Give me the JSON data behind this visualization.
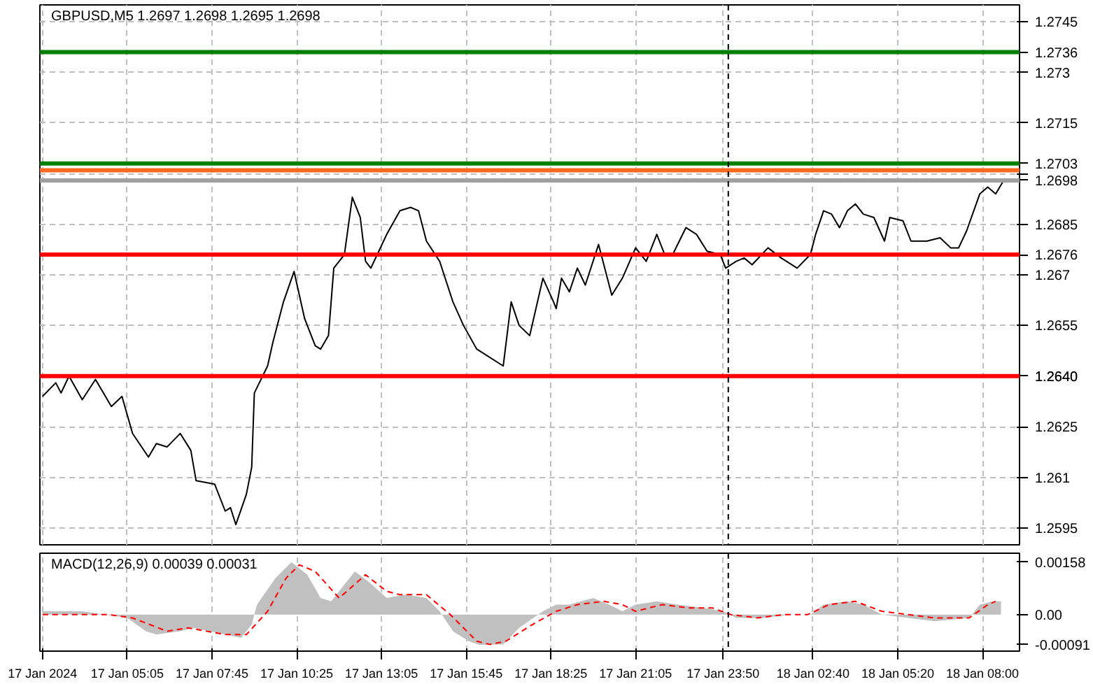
{
  "chart_data": [
    {
      "type": "line",
      "title": "GBPUSD,M5  1.2697 1.2698 1.2695 1.2698",
      "tick_labels": "y",
      "grid": true,
      "xlim": [
        "2024-01-17T02:20",
        "2024-01-18T09:10"
      ],
      "xticks": [
        {
          "value": "2024-01-17T02:25",
          "label": null
        },
        {
          "value": "2024-01-17T05:05",
          "label": null
        },
        {
          "value": "2024-01-17T07:45",
          "label": null
        },
        {
          "value": "2024-01-17T10:25",
          "label": null
        },
        {
          "value": "2024-01-17T13:05",
          "label": null
        },
        {
          "value": "2024-01-17T15:45",
          "label": null
        },
        {
          "value": "2024-01-17T18:25",
          "label": null
        },
        {
          "value": "2024-01-17T21:05",
          "label": null
        },
        {
          "value": "2024-01-17T23:50",
          "label": null
        },
        {
          "value": "2024-01-18T02:40",
          "label": null
        },
        {
          "value": "2024-01-18T05:20",
          "label": null
        },
        {
          "value": "2024-01-18T08:00",
          "label": null
        }
      ],
      "ylim": [
        1.259,
        1.275
      ],
      "yticks": [
        1.2595,
        1.261,
        1.2625,
        {
          "value": 1.264,
          "label": null
        },
        1.2655,
        1.267,
        1.2685,
        {
          "value": 1.27,
          "label": null
        },
        1.2715,
        1.273,
        1.2745
      ],
      "series": [
        {
          "color": "#000000",
          "x": [
            "2024-01-17T02:25",
            "2024-01-17T02:50",
            "2024-01-17T03:00",
            "2024-01-17T03:15",
            "2024-01-17T03:40",
            "2024-01-17T04:05",
            "2024-01-17T04:35",
            "2024-01-17T04:55",
            "2024-01-17T05:15",
            "2024-01-17T05:45",
            "2024-01-17T06:00",
            "2024-01-17T06:20",
            "2024-01-17T06:45",
            "2024-01-17T07:05",
            "2024-01-17T07:15",
            "2024-01-17T07:50",
            "2024-01-17T08:10",
            "2024-01-17T08:20",
            "2024-01-17T08:30",
            "2024-01-17T08:50",
            "2024-01-17T09:00",
            "2024-01-17T09:05",
            "2024-01-17T09:30",
            "2024-01-17T09:40",
            "2024-01-17T10:00",
            "2024-01-17T10:20",
            "2024-01-17T10:40",
            "2024-01-17T11:00",
            "2024-01-17T11:10",
            "2024-01-17T11:25",
            "2024-01-17T11:35",
            "2024-01-17T11:55",
            "2024-01-17T12:10",
            "2024-01-17T12:25",
            "2024-01-17T12:35",
            "2024-01-17T12:45",
            "2024-01-17T13:00",
            "2024-01-17T13:15",
            "2024-01-17T13:40",
            "2024-01-17T14:00",
            "2024-01-17T14:15",
            "2024-01-17T14:30",
            "2024-01-17T14:55",
            "2024-01-17T15:20",
            "2024-01-17T15:40",
            "2024-01-17T16:05",
            "2024-01-17T16:55",
            "2024-01-17T17:10",
            "2024-01-17T17:25",
            "2024-01-17T17:45",
            "2024-01-17T18:10",
            "2024-01-17T18:30",
            "2024-01-17T18:35",
            "2024-01-17T18:45",
            "2024-01-17T19:00",
            "2024-01-17T19:15",
            "2024-01-17T19:30",
            "2024-01-17T19:55",
            "2024-01-17T20:20",
            "2024-01-17T20:40",
            "2024-01-17T21:05",
            "2024-01-17T21:25",
            "2024-01-17T21:45",
            "2024-01-17T22:00",
            "2024-01-17T22:15",
            "2024-01-17T22:40",
            "2024-01-17T23:00",
            "2024-01-17T23:20",
            "2024-01-17T23:45",
            "2024-01-17T23:55",
            "2024-01-18T00:15",
            "2024-01-18T00:30",
            "2024-01-18T00:45",
            "2024-01-18T01:15",
            "2024-01-18T01:40",
            "2024-01-18T02:10",
            "2024-01-18T02:35",
            "2024-01-18T02:45",
            "2024-01-18T03:00",
            "2024-01-18T03:15",
            "2024-01-18T03:30",
            "2024-01-18T03:45",
            "2024-01-18T04:00",
            "2024-01-18T04:15",
            "2024-01-18T04:35",
            "2024-01-18T04:55",
            "2024-01-18T05:05",
            "2024-01-18T05:30",
            "2024-01-18T05:45",
            "2024-01-18T06:15",
            "2024-01-18T06:40",
            "2024-01-18T07:00",
            "2024-01-18T07:15",
            "2024-01-18T07:30",
            "2024-01-18T07:55",
            "2024-01-18T08:10",
            "2024-01-18T08:25",
            "2024-01-18T08:40"
          ],
          "values": [
            1.2634,
            1.2638,
            1.2635,
            1.264,
            1.2633,
            1.2639,
            1.2631,
            1.2634,
            1.2623,
            1.2616,
            1.262,
            1.2619,
            1.2623,
            1.2618,
            1.2609,
            1.2608,
            1.26,
            1.2601,
            1.2596,
            1.2605,
            1.2613,
            1.2635,
            1.2643,
            1.265,
            1.2662,
            1.2671,
            1.2657,
            1.2649,
            1.2648,
            1.2652,
            1.2672,
            1.2676,
            1.2693,
            1.2687,
            1.2674,
            1.2672,
            1.2677,
            1.2682,
            1.2689,
            1.269,
            1.2689,
            1.268,
            1.2674,
            1.2662,
            1.2655,
            1.2648,
            1.2643,
            1.2662,
            1.2655,
            1.2652,
            1.2669,
            1.2662,
            1.266,
            1.2669,
            1.2665,
            1.2672,
            1.2667,
            1.2679,
            1.2664,
            1.2669,
            1.2678,
            1.2674,
            1.2682,
            1.2676,
            1.2676,
            1.2684,
            1.2682,
            1.2677,
            1.2676,
            1.2672,
            1.2674,
            1.2675,
            1.2673,
            1.2678,
            1.2675,
            1.2672,
            1.2676,
            1.2682,
            1.2689,
            1.2688,
            1.2684,
            1.2689,
            1.2691,
            1.2688,
            1.2687,
            1.268,
            1.2687,
            1.2686,
            1.268,
            1.268,
            1.2681,
            1.2678,
            1.2678,
            1.2683,
            1.2694,
            1.2696,
            1.2694,
            1.2698
          ]
        }
      ],
      "ref_lines": [
        {
          "axis": "y",
          "value": 1.2736,
          "label": "1.2736",
          "color": "#008000"
        },
        {
          "axis": "y",
          "value": 1.2703,
          "label": "1.2703",
          "color": "#008000"
        },
        {
          "axis": "y",
          "value": 1.2701,
          "label": null,
          "color": "#ff6a20"
        },
        {
          "axis": "y",
          "value": 1.2698,
          "label": "1.2698",
          "color": "#a0a0a0"
        },
        {
          "axis": "y",
          "value": 1.2676,
          "label": "1.2676",
          "color": "#ff0000"
        },
        {
          "axis": "y",
          "value": 1.264,
          "label": "1.2640",
          "color": "#ff0000"
        },
        {
          "axis": "x",
          "value": "2024-01-18T00:00",
          "label": null,
          "color": "#000000",
          "line_style": "dashed"
        }
      ]
    },
    {
      "type": "line",
      "title": "MACD(12,26,9) 0.00039 0.00031",
      "grid": "x",
      "xlim": [
        "2024-01-17T02:20",
        "2024-01-18T09:10"
      ],
      "xticks": [
        {
          "value": "2024-01-17T02:25",
          "label": "17 Jan 2024"
        },
        {
          "value": "2024-01-17T05:05",
          "label": "17 Jan 05:05"
        },
        {
          "value": "2024-01-17T07:45",
          "label": "17 Jan 07:45"
        },
        {
          "value": "2024-01-17T10:25",
          "label": "17 Jan 10:25"
        },
        {
          "value": "2024-01-17T13:05",
          "label": "17 Jan 13:05"
        },
        {
          "value": "2024-01-17T15:45",
          "label": "17 Jan 15:45"
        },
        {
          "value": "2024-01-17T18:25",
          "label": "17 Jan 18:25"
        },
        {
          "value": "2024-01-17T21:05",
          "label": "17 Jan 21:05"
        },
        {
          "value": "2024-01-17T23:50",
          "label": "17 Jan 23:50"
        },
        {
          "value": "2024-01-18T02:40",
          "label": "18 Jan 02:40"
        },
        {
          "value": "2024-01-18T05:20",
          "label": "18 Jan 05:20"
        },
        {
          "value": "2024-01-18T08:00",
          "label": "18 Jan 08:00"
        }
      ],
      "ylim": [
        -0.0011,
        0.00185
      ],
      "yticks": [
        -0.00091,
        {
          "value": 0,
          "label": "0.00"
        },
        0.00158
      ],
      "series": [
        {
          "type": "area",
          "color": "#c0c0c0",
          "x": [
            "2024-01-17T02:25",
            "2024-01-17T03:40",
            "2024-01-17T05:05",
            "2024-01-17T05:40",
            "2024-01-17T06:00",
            "2024-01-17T06:45",
            "2024-01-17T07:10",
            "2024-01-17T08:10",
            "2024-01-17T08:40",
            "2024-01-17T09:00",
            "2024-01-17T09:10",
            "2024-01-17T09:45",
            "2024-01-17T10:15",
            "2024-01-17T10:45",
            "2024-01-17T11:10",
            "2024-01-17T11:30",
            "2024-01-17T11:55",
            "2024-01-17T12:15",
            "2024-01-17T12:40",
            "2024-01-17T13:15",
            "2024-01-17T13:50",
            "2024-01-17T14:30",
            "2024-01-17T14:55",
            "2024-01-17T15:20",
            "2024-01-17T15:50",
            "2024-01-17T16:10",
            "2024-01-17T16:55",
            "2024-01-17T17:25",
            "2024-01-17T18:10",
            "2024-01-17T18:35",
            "2024-01-17T19:00",
            "2024-01-17T19:45",
            "2024-01-17T20:15",
            "2024-01-17T20:40",
            "2024-01-17T21:05",
            "2024-01-17T21:45",
            "2024-01-17T22:25",
            "2024-01-17T23:15",
            "2024-01-17T23:50",
            "2024-01-18T00:15",
            "2024-01-18T01:05",
            "2024-01-18T02:00",
            "2024-01-18T02:35",
            "2024-01-18T03:00",
            "2024-01-18T03:45",
            "2024-01-18T04:15",
            "2024-01-18T04:50",
            "2024-01-18T05:40",
            "2024-01-18T06:30",
            "2024-01-18T07:35",
            "2024-01-18T07:55",
            "2024-01-18T08:20",
            "2024-01-18T08:35"
          ],
          "values": [
            0.0001,
            0.0001,
            -0.0001,
            -0.0005,
            -0.0006,
            -0.0005,
            -0.0004,
            -0.0006,
            -0.0007,
            -0.0003,
            0.0003,
            0.0011,
            0.00158,
            0.0012,
            0.0005,
            0.0004,
            0.0009,
            0.0013,
            0.001,
            0.0005,
            0.0006,
            0.0005,
            0.0001,
            -0.0005,
            -0.0008,
            -0.00091,
            -0.0009,
            -0.0004,
            0.0001,
            0.0003,
            0.0003,
            0.0005,
            0.0003,
            0.0001,
            0.0003,
            0.0004,
            0.0003,
            0.0002,
            0.0001,
            -0.0001,
            -0.0001,
            0.0,
            0.0,
            0.0003,
            0.0004,
            0.0003,
            0.0,
            -0.0001,
            -0.0002,
            -0.0001,
            0.0003,
            0.0004,
            0.0004
          ]
        },
        {
          "type": "line",
          "line_style": "dashed",
          "color": "#ff0000",
          "x": [
            "2024-01-17T02:25",
            "2024-01-17T04:30",
            "2024-01-17T05:15",
            "2024-01-17T06:20",
            "2024-01-17T07:00",
            "2024-01-17T08:10",
            "2024-01-17T08:50",
            "2024-01-17T09:30",
            "2024-01-17T10:05",
            "2024-01-17T10:30",
            "2024-01-17T11:00",
            "2024-01-17T11:45",
            "2024-01-17T12:35",
            "2024-01-17T13:15",
            "2024-01-17T13:40",
            "2024-01-17T14:30",
            "2024-01-17T15:15",
            "2024-01-17T16:05",
            "2024-01-17T16:30",
            "2024-01-17T17:00",
            "2024-01-17T17:50",
            "2024-01-17T18:35",
            "2024-01-17T19:15",
            "2024-01-17T20:05",
            "2024-01-17T20:40",
            "2024-01-17T21:05",
            "2024-01-17T21:55",
            "2024-01-17T22:45",
            "2024-01-17T23:30",
            "2024-01-18T00:05",
            "2024-01-18T00:55",
            "2024-01-18T01:45",
            "2024-01-18T02:30",
            "2024-01-18T03:10",
            "2024-01-18T04:00",
            "2024-01-18T04:50",
            "2024-01-18T05:40",
            "2024-01-18T06:30",
            "2024-01-18T07:35",
            "2024-01-18T08:10",
            "2024-01-18T08:25"
          ],
          "values": [
            0.0,
            0.0,
            -0.0001,
            -0.0005,
            -0.0004,
            -0.0006,
            -0.0006,
            0.0001,
            0.0011,
            0.0015,
            0.0013,
            0.0005,
            0.0012,
            0.0007,
            0.0006,
            0.0006,
            0.0,
            -0.0008,
            -0.0009,
            -0.0008,
            -0.0003,
            0.0001,
            0.0003,
            0.0004,
            0.0003,
            0.0001,
            0.0003,
            0.0002,
            0.0002,
            0.0,
            -0.0001,
            0.0,
            0.0,
            0.0003,
            0.0004,
            0.0001,
            0.0,
            -0.0001,
            -0.0001,
            0.0003,
            0.0004
          ]
        }
      ],
      "ref_lines": [
        {
          "axis": "x",
          "value": "2024-01-18T00:00",
          "label": null,
          "color": "#000000",
          "line_style": "dashed"
        }
      ]
    }
  ]
}
